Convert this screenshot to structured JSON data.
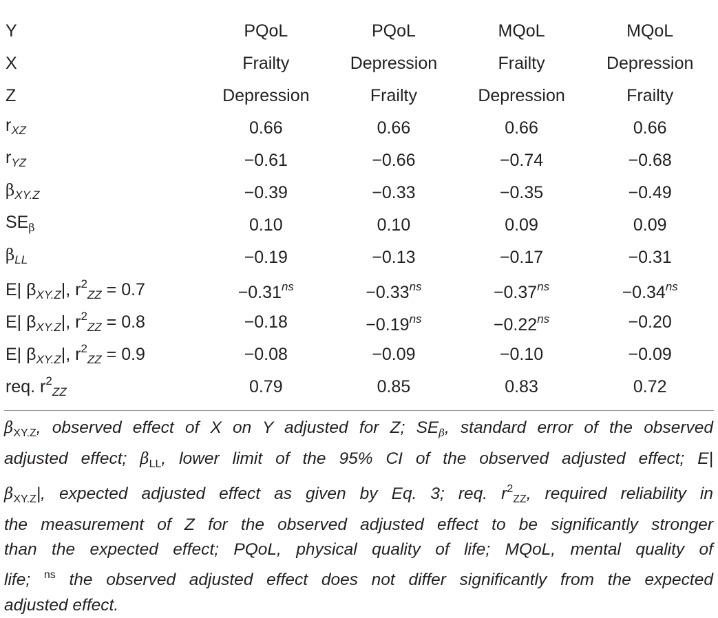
{
  "table": {
    "rows": [
      {
        "label": "Y",
        "values": [
          "PQoL",
          "PQoL",
          "MQoL",
          "MQoL"
        ]
      },
      {
        "label": "X",
        "values": [
          "Frailty",
          "Depression",
          "Frailty",
          "Depression"
        ]
      },
      {
        "label": "Z",
        "values": [
          "Depression",
          "Frailty",
          "Depression",
          "Frailty"
        ]
      },
      {
        "label_base": "r",
        "label_sub": "XZ",
        "values": [
          "0.66",
          "0.66",
          "0.66",
          "0.66"
        ]
      },
      {
        "label_base": "r",
        "label_sub": "YZ",
        "values": [
          "−0.61",
          "−0.66",
          "−0.74",
          "−0.68"
        ]
      },
      {
        "label_base": "β",
        "label_sub": "XY.Z",
        "values": [
          "−0.39",
          "−0.33",
          "−0.35",
          "−0.49"
        ]
      },
      {
        "label_base": "SE",
        "label_sub": "β",
        "values": [
          "0.10",
          "0.10",
          "0.09",
          "0.09"
        ]
      },
      {
        "label_base": "β",
        "label_sub": "LL",
        "values": [
          "−0.19",
          "−0.13",
          "−0.17",
          "−0.31"
        ]
      },
      {
        "label_prefix": "E| β",
        "label_sub": "XY.Z",
        "label_mid": "|, r",
        "label_sup": "2",
        "label_sub2": "ZZ",
        "label_suffix": " = 0.7",
        "values": [
          "−0.31",
          "−0.33",
          "−0.37",
          "−0.34"
        ],
        "marks": [
          "ns",
          "ns",
          "ns",
          "ns"
        ]
      },
      {
        "label_prefix": "E| β",
        "label_sub": "XY.Z",
        "label_mid": "|, r",
        "label_sup": "2",
        "label_sub2": "ZZ",
        "label_suffix": " = 0.8",
        "values": [
          "−0.18",
          "−0.19",
          "−0.22",
          "−0.20"
        ],
        "marks": [
          "",
          "ns",
          "ns",
          ""
        ]
      },
      {
        "label_prefix": "E| β",
        "label_sub": "XY.Z",
        "label_mid": "|, r",
        "label_sup": "2",
        "label_sub2": "ZZ",
        "label_suffix": " = 0.9",
        "values": [
          "−0.08",
          "−0.09",
          "−0.10",
          "−0.09"
        ]
      },
      {
        "label_prefix": "req. r",
        "label_sup": "2",
        "label_sub2": "ZZ",
        "values": [
          "0.79",
          "0.85",
          "0.83",
          "0.72"
        ]
      }
    ]
  },
  "footnote": {
    "l1": {
      "a": "β",
      "b": "XY.Z",
      "c": ", observed effect of X on Y adjusted for Z; SE",
      "d": "β",
      "e": ", standard error of the observed"
    },
    "l2": {
      "a": "adjusted effect; ",
      "b": "β",
      "c": "LL",
      "d": ", lower limit of the 95% CI of the observed adjusted effect; E|"
    },
    "l3": {
      "a": "β",
      "b": "XY.Z",
      "c": "|, expected adjusted effect as given by Eq. 3; req. r",
      "d": "2",
      "e": "ZZ",
      "f": ", required reliability in"
    },
    "l4": "the measurement of Z for the observed adjusted effect to be significantly stronger",
    "l5": "than the expected effect; PQoL, physical quality of life; MQoL, mental quality of",
    "l6": {
      "a": "life; ",
      "b": "ns",
      "c": " the observed adjusted effect does not differ significantly from the expected"
    },
    "l7": "adjusted effect."
  }
}
